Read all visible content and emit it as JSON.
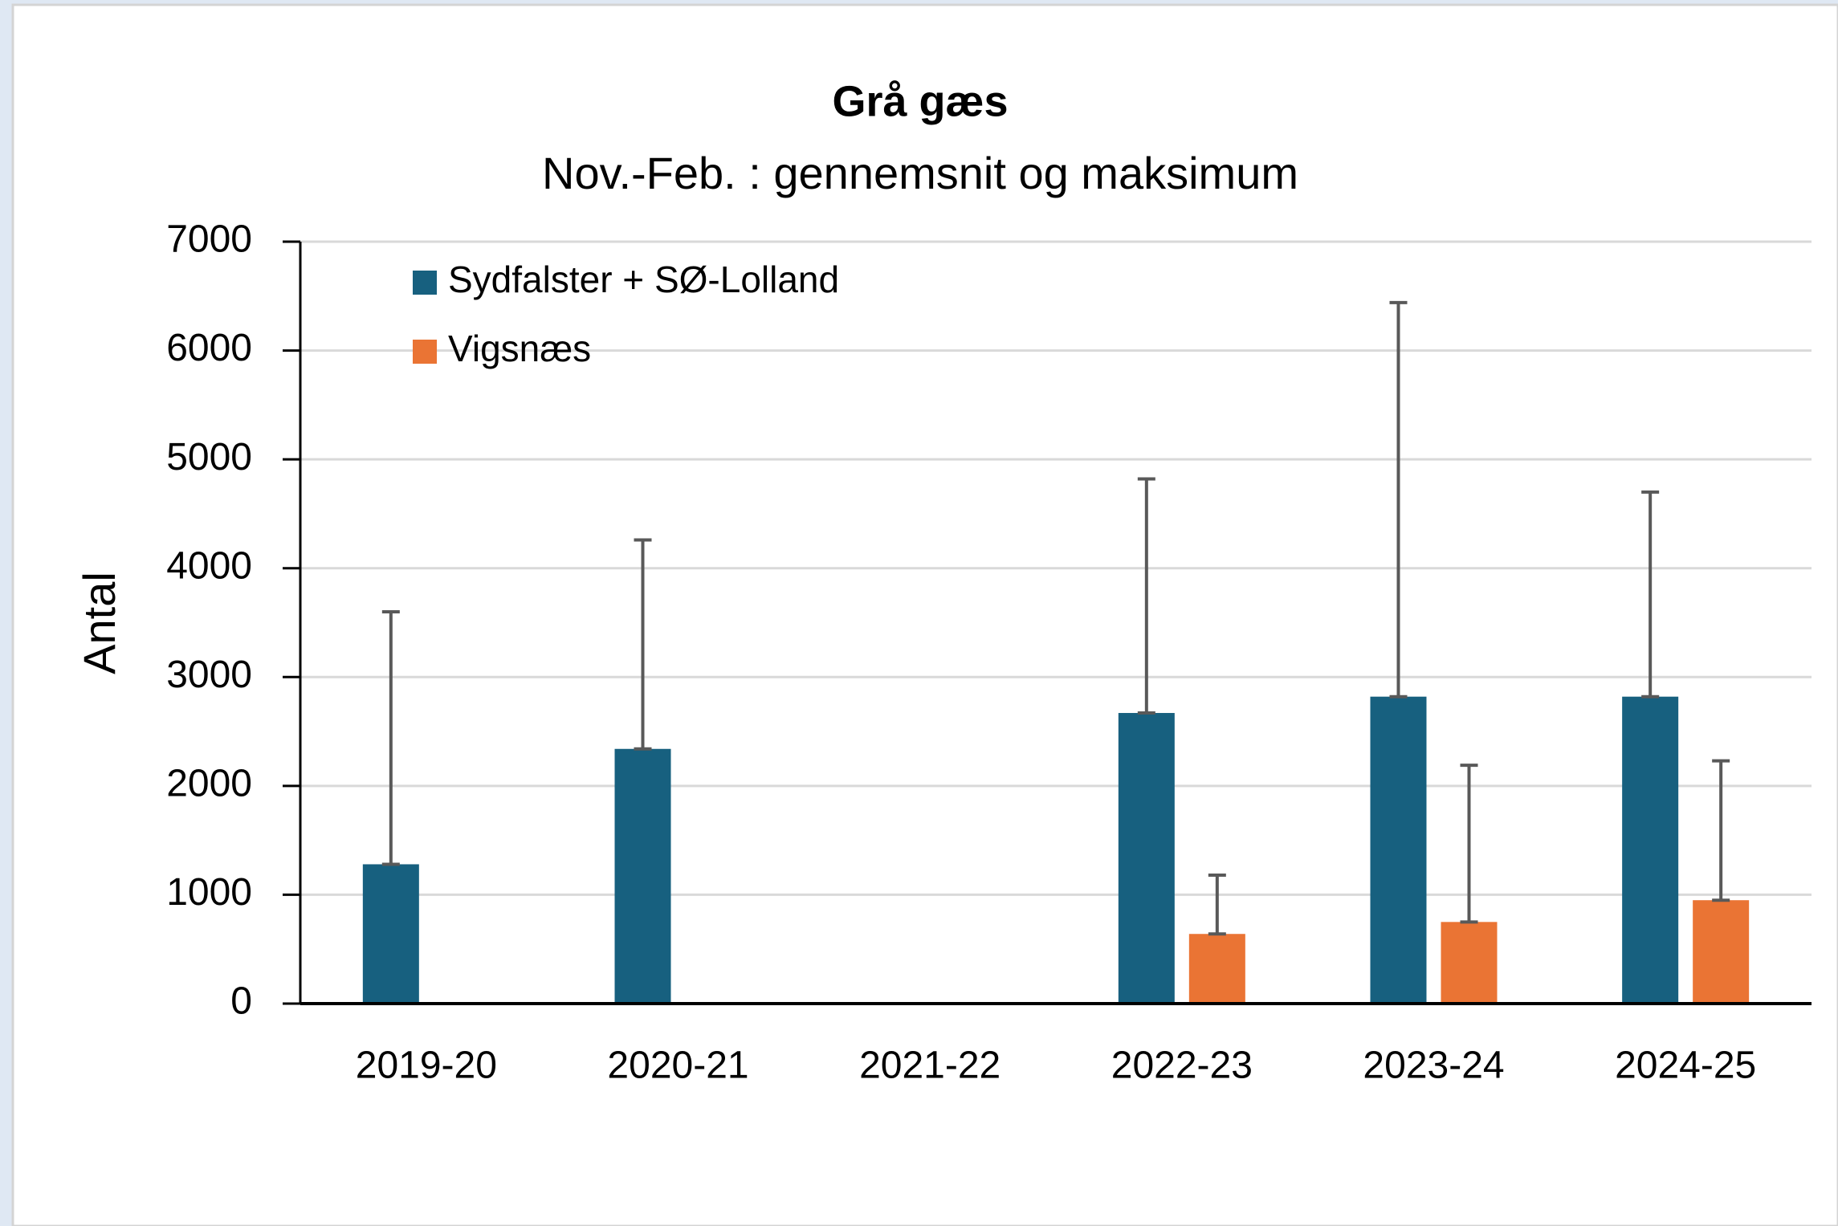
{
  "chart_data": {
    "type": "bar",
    "title": "Grå gæs",
    "subtitle": "Nov.-Feb. : gennemsnit og maksimum",
    "ylabel": "Antal",
    "categories": [
      "2019-20",
      "2020-21",
      "2021-22",
      "2022-23",
      "2023-24",
      "2024-25"
    ],
    "series": [
      {
        "name": "Sydfalster + SØ-Lolland",
        "color": "#17607f",
        "values": [
          1280,
          2340,
          null,
          2670,
          2820,
          2820
        ],
        "errors": [
          2320,
          1920,
          null,
          2150,
          3620,
          1880
        ]
      },
      {
        "name": "Vigsnæs",
        "color": "#ea7434",
        "values": [
          null,
          null,
          null,
          640,
          750,
          950
        ],
        "errors": [
          null,
          null,
          null,
          540,
          1440,
          1280
        ]
      }
    ],
    "ylim": [
      0,
      7000
    ],
    "yticks": [
      0,
      1000,
      2000,
      3000,
      4000,
      5000,
      6000,
      7000
    ],
    "grid": true,
    "legend": "top-left"
  }
}
